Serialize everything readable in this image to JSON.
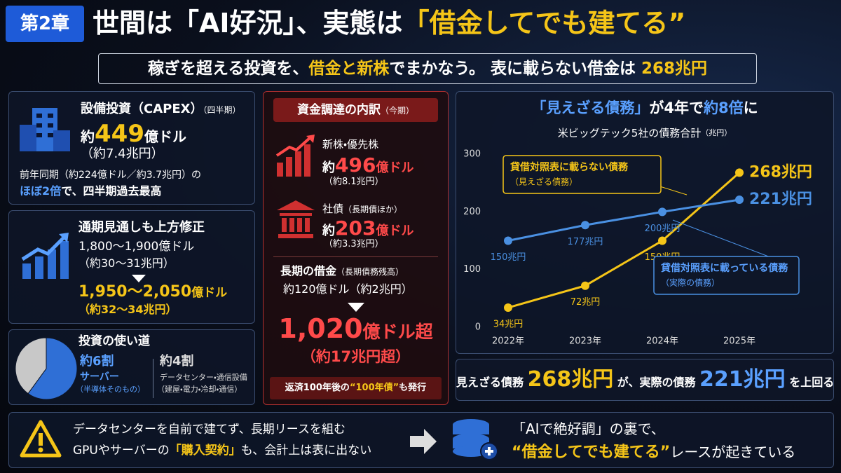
{
  "header": {
    "chapter": "第2章",
    "title": [
      "世間は「AI好況」、実態は",
      "「借金してでも建てる”"
    ]
  },
  "subtitle": [
    "稼ぎを超える投資を、",
    "借金と新株",
    "でまかなう。 表に載らない借金は ",
    "268兆円"
  ],
  "capex": {
    "title": "設備投資（CAPEX）",
    "period": "（四半期）",
    "prefix": "約",
    "amount": "449",
    "unit": "億ドル",
    "converted": "（約7.4兆円）",
    "comparison": "前年同期（約224億ドル／約3.7兆円）の",
    "highlight": [
      "ほぼ2倍",
      "で、四半期過去最高"
    ]
  },
  "outlook": {
    "title": "通期見通しも上方修正",
    "before": "1,800〜1,900億ドル",
    "before_converted": "（約30〜31兆円）",
    "after": "1,950〜2,050",
    "after_unit": "億ドル",
    "after_converted": "（約32〜34兆円）"
  },
  "usage": {
    "title": "投資の使い道"
  },
  "funding": {
    "title": "資金調達の内訳",
    "period": "（今期）",
    "items": [
      {
        "name": "新株・優先株",
        "prefix": "約",
        "amount": "496",
        "unit": "億ドル",
        "converted": "（約8.1兆円）"
      },
      {
        "name": "社債",
        "note": "（長期債ほか）",
        "prefix": "約",
        "amount": "203",
        "unit": "億ドル",
        "converted": "（約3.3兆円）"
      }
    ],
    "debt": {
      "title": "長期の借金",
      "note": "（長期債務残高）",
      "before": "約120億ドル（約2兆円）",
      "after": "1,020",
      "after_unit": "億ドル超",
      "after_converted": "（約17兆円超）"
    },
    "footnote": [
      "返済100年後の",
      "“100年債”",
      "も発行"
    ]
  },
  "chart_data": [
    {
      "type": "line",
      "headline": [
        "「見えざる債務」",
        "が4年で",
        "約8倍",
        "に"
      ],
      "title": "米ビッグテック5社の債務合計",
      "unit": "（兆円）",
      "categories": [
        "2022年",
        "2023年",
        "2024年",
        "2025年"
      ],
      "ylim": [
        0,
        300
      ],
      "yticks": [
        0,
        100,
        200,
        300
      ],
      "series": [
        {
          "name": "貸借対照表に載らない債務",
          "note": "（見えざる債務）",
          "color": "#f5c518",
          "values": [
            34,
            72,
            150,
            268
          ],
          "value_labels": [
            "34兆円",
            "72兆円",
            "150兆円",
            "268兆円"
          ]
        },
        {
          "name": "貸借対照表に載っている債務",
          "note": "（実際の債務）",
          "color": "#4a90e2",
          "values": [
            150,
            177,
            200,
            221
          ],
          "value_labels": [
            "150兆円",
            "177兆円",
            "200兆円",
            "221兆円"
          ]
        }
      ]
    },
    {
      "type": "pie",
      "categories": [
        "サーバー",
        "データセンター・通信設備"
      ],
      "notes": [
        "（半導体そのもの）",
        "（建屋・電力・冷却・通信）"
      ],
      "values": [
        6,
        4
      ],
      "value_labels": [
        "約6割",
        "約4割"
      ],
      "colors": [
        "#2f6fd6",
        "#c8c8c8"
      ]
    }
  ],
  "comparison": [
    "見えざる債務 ",
    "268兆円",
    " が、実際の債務 ",
    "221兆円",
    " を上回る"
  ],
  "banner": {
    "left1": "データセンターを自前で建てず、長期リースを組む",
    "left2": [
      "GPUやサーバーの",
      "「購入契約」",
      "も、会計上は表に出ない"
    ],
    "right1": "「AIで絶好調」の裏で、",
    "right2": [
      "“借金してでも建てる”",
      "レースが起きている"
    ]
  }
}
